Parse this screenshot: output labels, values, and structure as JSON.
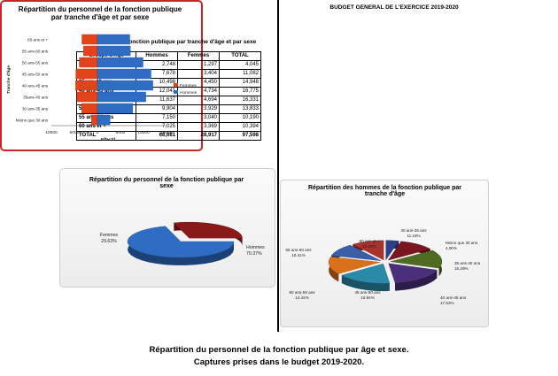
{
  "doc_title": "BUDGET GENERAL DE L'EXERCICE 2019-2020",
  "caption": {
    "line1": "Répartition du personnel de la fonction publique par âge et sexe.",
    "line2": "Captures prises dans le budget 2019-2020."
  },
  "colors": {
    "hommes": "#2f6cc4",
    "femmes": "#e2431b",
    "femmes_pie": "#8a1a1a"
  },
  "chart_data": [
    {
      "type": "table",
      "title": "Effectif de la fonction publique par tranche d'âge et par sexe",
      "columns": [
        "Groupe d'Age",
        "Hommes",
        "Femmes",
        "TOTAL"
      ],
      "rows": [
        [
          "Moins de 30 ans",
          "2,748",
          "1,297",
          "4,045"
        ],
        [
          "30 ans-35 ans",
          "7,678",
          "3,404",
          "11,082"
        ],
        [
          "35ans-40 ans",
          "10,498",
          "4,450",
          "14,948"
        ],
        [
          "40 ans-45 ans",
          "12,041",
          "4,734",
          "16,775"
        ],
        [
          "45 ans-50 ans",
          "11,637",
          "4,694",
          "16,331"
        ],
        [
          "50 ans-55 ans",
          "9,904",
          "3,929",
          "13,833"
        ],
        [
          "55 ans-60 ans",
          "7,150",
          "3,040",
          "10,190"
        ],
        [
          "60 ans et +",
          "7,025",
          "3,369",
          "10,394"
        ],
        [
          "TOTAL",
          "68,681",
          "28,917",
          "97,598"
        ]
      ]
    },
    {
      "type": "bar",
      "orientation": "horizontal",
      "title": "Répartition du personnel de la fonction publique par tranche d'âge et par sexe",
      "categories": [
        "Moins que 30 ans",
        "30 ans-35 ans",
        "35ans-40 ans",
        "40 ans-45 ans",
        "45 ans-50 ans",
        "50 ans-55 ans",
        "55 ans-60 ans",
        "60 ans et +"
      ],
      "series": [
        {
          "name": "Femmes",
          "values": [
            1297,
            3404,
            4450,
            4734,
            4694,
            3929,
            3040,
            3369
          ]
        },
        {
          "name": "Hommes",
          "values": [
            2748,
            7678,
            10498,
            12041,
            11637,
            9904,
            7150,
            7025
          ]
        }
      ],
      "xticks": [
        "10000",
        "5000",
        "0",
        "5000",
        "10000",
        "15000"
      ],
      "xlabel": "Effectif",
      "ylabel": "Tranche d'âge",
      "xlim": [
        -10000,
        15000
      ],
      "legend": "right"
    },
    {
      "type": "pie",
      "title": "Répartition du personnel de la fonction publique par sexe",
      "labels": [
        "Hommes",
        "Femmes"
      ],
      "values": [
        70.37,
        29.63
      ],
      "data_labels": [
        "70.37%",
        "29.63%"
      ]
    },
    {
      "type": "pie",
      "title": "Répartition des hommes de la fonction publique par tranche d'âge",
      "labels": [
        "Moins que 30 ans",
        "30 ans-35 ans",
        "35 ans-40 ans",
        "40 ans-45 ans",
        "45 ans-50 ans",
        "50 ans-55 ans",
        "55 ans-60 ans",
        "60 ans et +"
      ],
      "values": [
        4.0,
        11.18,
        15.29,
        17.53,
        16.94,
        14.42,
        10.41,
        10.23
      ],
      "data_labels": [
        "4.00%",
        "11.18%",
        "15.29%",
        "17.53%",
        "16.94%",
        "14.42%",
        "10.41%",
        "10.23%"
      ],
      "colors": [
        "#2c3e8c",
        "#7a1620",
        "#4f6b22",
        "#4b2f7a",
        "#2b8aa8",
        "#d9701c",
        "#3a5ea8",
        "#a8322c"
      ]
    }
  ]
}
